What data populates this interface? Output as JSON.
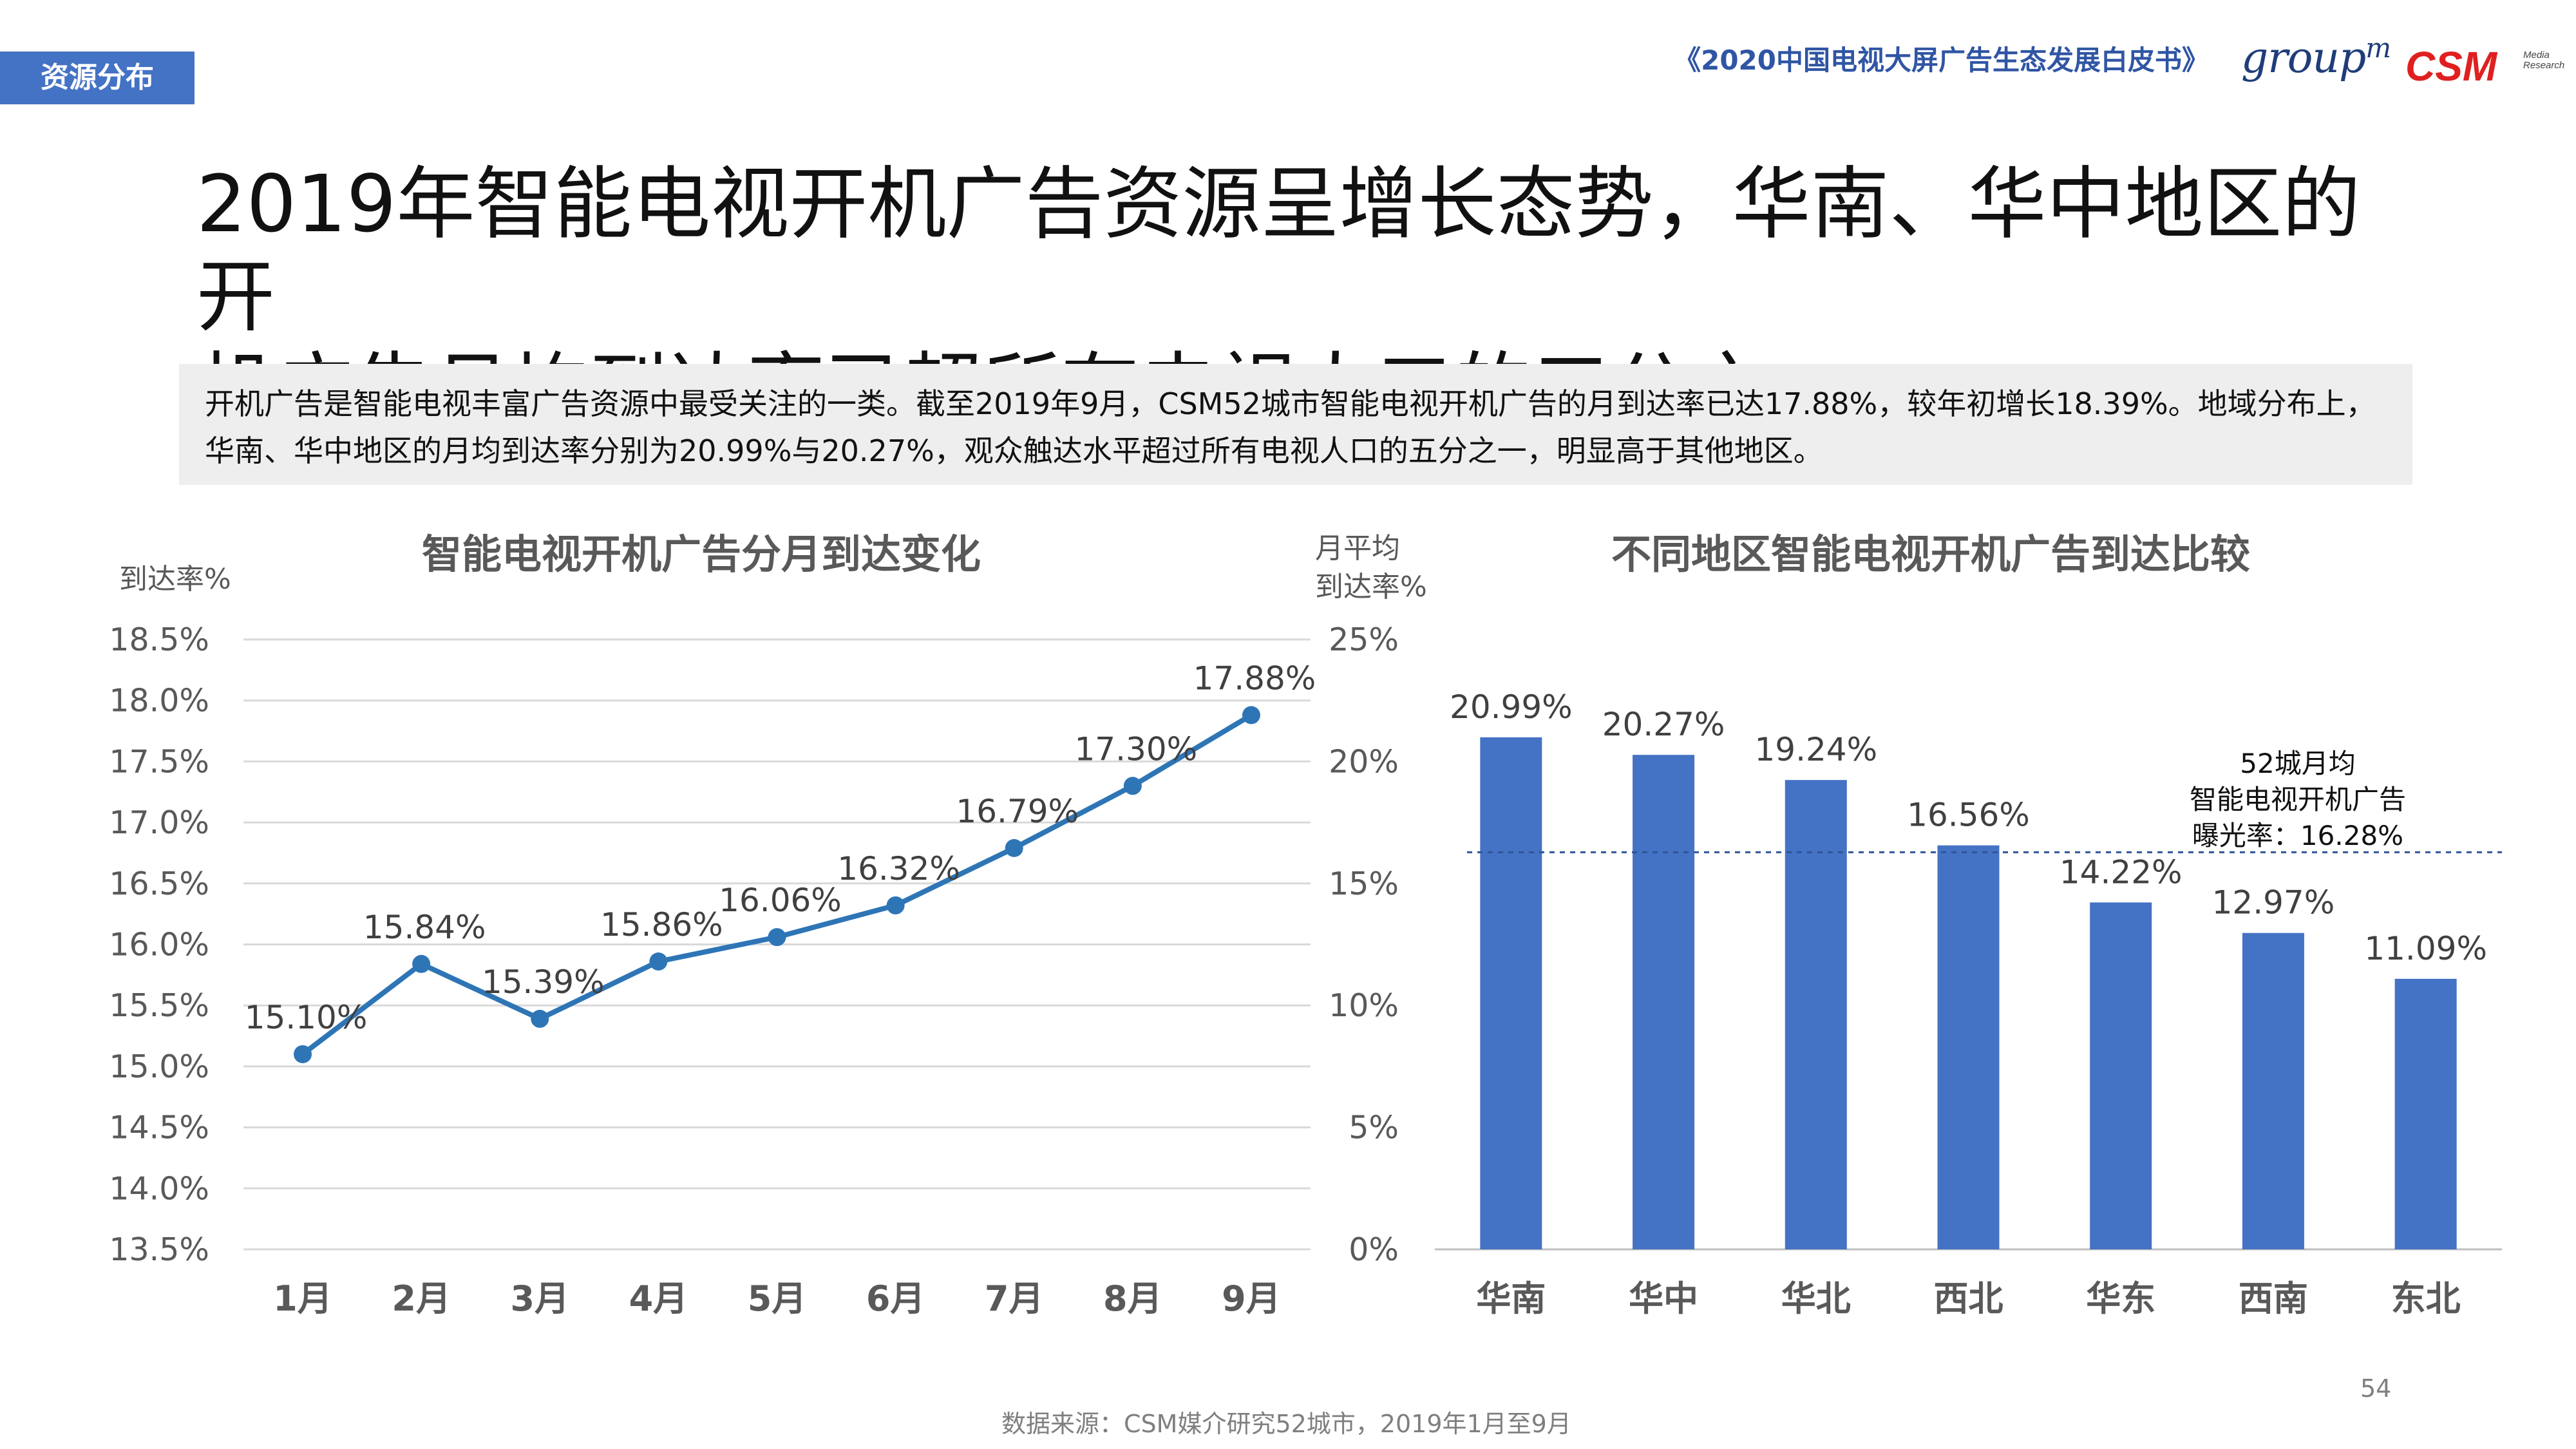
{
  "header": {
    "tag": "资源分布",
    "report_title": "《2020中国电视大屏广告生态发展白皮书》",
    "logo_groupm": "group",
    "logo_groupm_sup": "m",
    "logo_csm": "CSM",
    "logo_csm_sub_1": "Media",
    "logo_csm_sub_2": "Research"
  },
  "headline": {
    "line1": "2019年智能电视开机广告资源呈增长态势，华南、华中地区的开",
    "line2": "机广告月均到达率已超所有电视人口的五分之一"
  },
  "summary": {
    "text": "开机广告是智能电视丰富广告资源中最受关注的一类。截至2019年9月，CSM52城市智能电视开机广告的月到达率已达17.88%，较年初增长18.39%。地域分布上，华南、华中地区的月均到达率分别为20.99%与20.27%，观众触达水平超过所有电视人口的五分之一，明显高于其他地区。"
  },
  "chart_data": [
    {
      "type": "line",
      "title": "智能电视开机广告分月到达变化",
      "ylabel": "到达率%",
      "xlabel": "",
      "categories": [
        "1月",
        "2月",
        "3月",
        "4月",
        "5月",
        "6月",
        "7月",
        "8月",
        "9月"
      ],
      "values": [
        15.1,
        15.84,
        15.39,
        15.86,
        16.06,
        16.32,
        16.79,
        17.3,
        17.88
      ],
      "data_labels": [
        "15.10%",
        "15.84%",
        "15.39%",
        "15.86%",
        "16.06%",
        "16.32%",
        "16.79%",
        "17.30%",
        "17.88%"
      ],
      "ylim": [
        13.5,
        18.5
      ],
      "yticks": [
        13.5,
        14.0,
        14.5,
        15.0,
        15.5,
        16.0,
        16.5,
        17.0,
        17.5,
        18.0,
        18.5
      ],
      "ytick_labels": [
        "13.5%",
        "14.0%",
        "14.5%",
        "15.0%",
        "15.5%",
        "16.0%",
        "16.5%",
        "17.0%",
        "17.5%",
        "18.0%",
        "18.5%"
      ],
      "grid": true,
      "color": "#2e75b6"
    },
    {
      "type": "bar",
      "title": "不同地区智能电视开机广告到达比较",
      "ylabel_line1": "月平均",
      "ylabel_line2": "到达率%",
      "xlabel": "",
      "categories": [
        "华南",
        "华中",
        "华北",
        "西北",
        "华东",
        "西南",
        "东北"
      ],
      "values": [
        20.99,
        20.27,
        19.24,
        16.56,
        14.22,
        12.97,
        11.09
      ],
      "data_labels": [
        "20.99%",
        "20.27%",
        "19.24%",
        "16.56%",
        "14.22%",
        "12.97%",
        "11.09%"
      ],
      "ylim": [
        0,
        25
      ],
      "yticks": [
        0,
        5,
        10,
        15,
        20,
        25
      ],
      "ytick_labels": [
        "0%",
        "5%",
        "10%",
        "15%",
        "20%",
        "25%"
      ],
      "grid": false,
      "color": "#4472c4",
      "reference_line": {
        "value": 16.28,
        "label_line1": "52城月均",
        "label_line2": "智能电视开机广告",
        "label_line3": "曝光率：16.28%"
      }
    }
  ],
  "footer": {
    "source": "数据来源：CSM媒介研究52城市，2019年1月至9月",
    "page_number": "54"
  }
}
